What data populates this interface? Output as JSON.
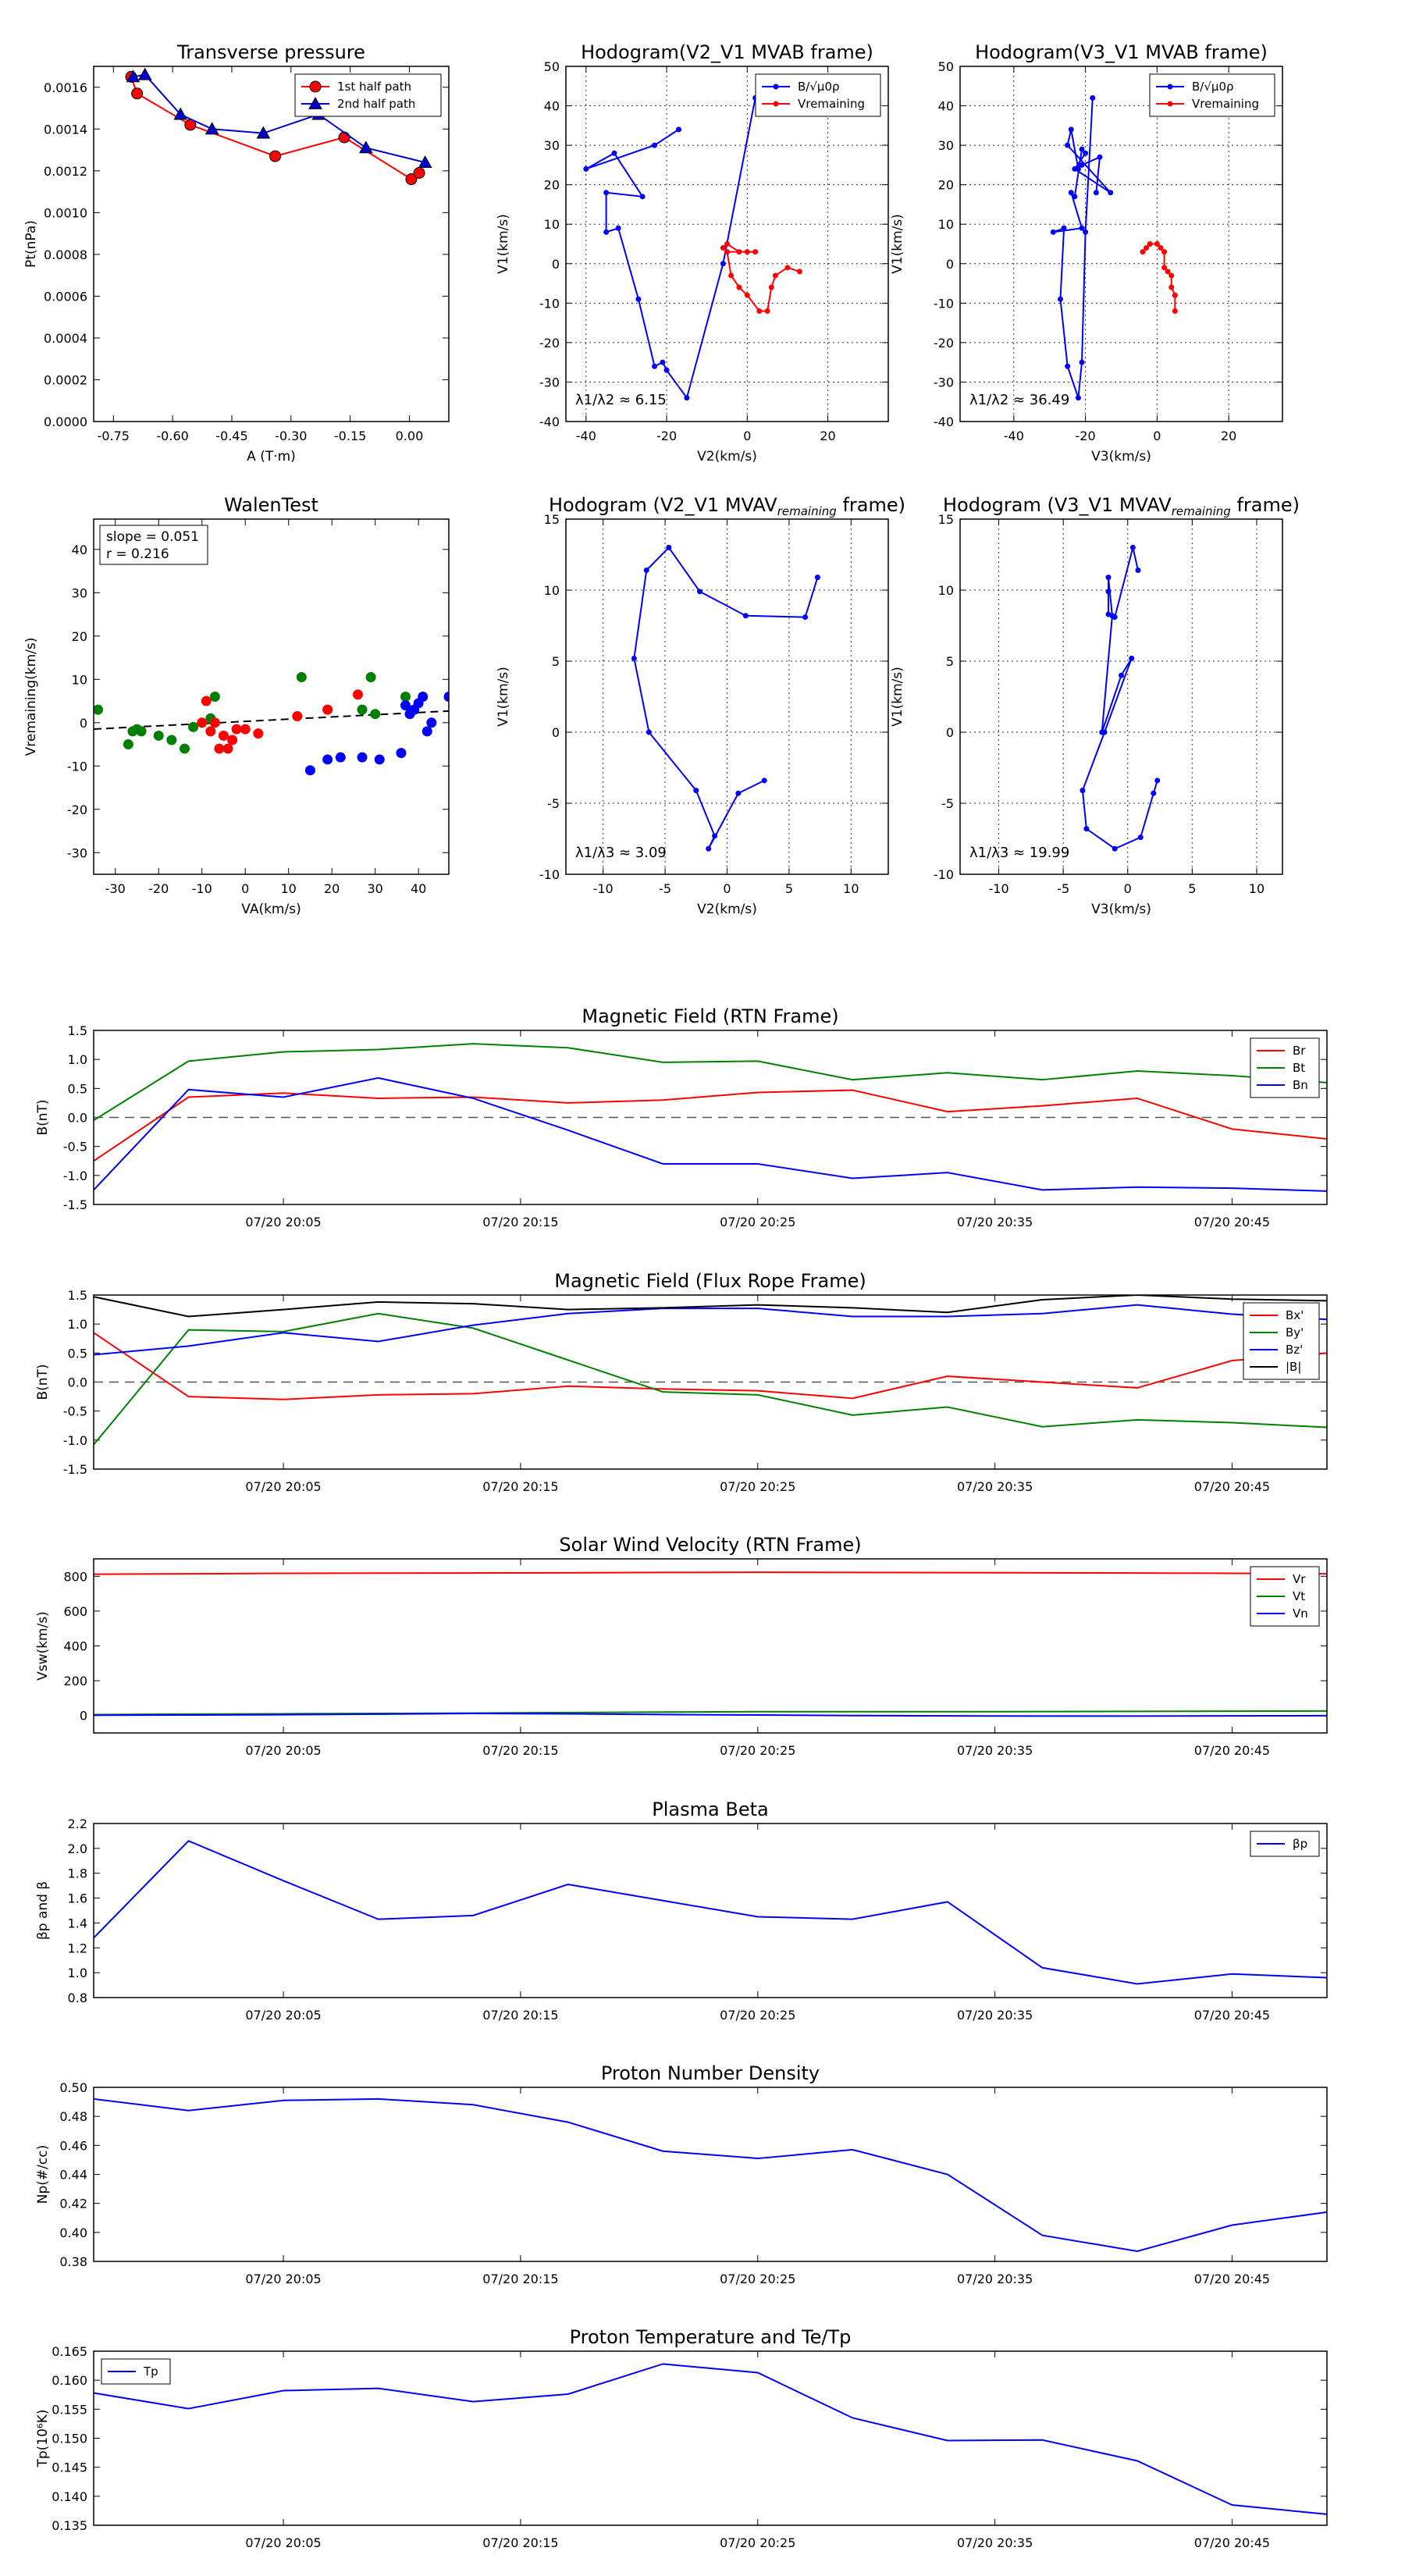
{
  "chart_data": [
    {
      "id": "tp",
      "type": "line",
      "title": "Transverse pressure",
      "xlabel": "A (T·m)",
      "ylabel": "Pt(nPa)",
      "xlim": [
        -0.8,
        0.1
      ],
      "ylim": [
        0,
        0.0017
      ],
      "xticks": [
        -0.75,
        -0.6,
        -0.45,
        -0.3,
        -0.15,
        0.0
      ],
      "xtick_labels": [
        "-0.75",
        "-0.60",
        "-0.45",
        "-0.30",
        "-0.15",
        "0.00"
      ],
      "yticks": [
        0,
        0.0002,
        0.0004,
        0.0006,
        0.0008,
        0.001,
        0.0012,
        0.0014,
        0.0016
      ],
      "ytick_labels": [
        "0.0000",
        "0.0002",
        "0.0004",
        "0.0006",
        "0.0008",
        "0.0010",
        "0.0012",
        "0.0014",
        "0.0016"
      ],
      "grid": false,
      "legend": "top-right",
      "series": [
        {
          "name": "1st half path",
          "color": "#ff0000",
          "marker": "circle",
          "x": [
            -0.705,
            -0.69,
            -0.555,
            -0.34,
            -0.165,
            0.005,
            0.025
          ],
          "y": [
            0.00165,
            0.00157,
            0.00142,
            0.00127,
            0.00136,
            0.00116,
            0.00119
          ]
        },
        {
          "name": "2nd half path",
          "color": "#0000cc",
          "marker": "triangle",
          "x": [
            -0.7,
            -0.67,
            -0.58,
            -0.5,
            -0.37,
            -0.23,
            -0.11,
            0.04
          ],
          "y": [
            0.00165,
            0.00166,
            0.00147,
            0.0014,
            0.00138,
            0.00147,
            0.00131,
            0.00124
          ]
        }
      ]
    },
    {
      "id": "h1",
      "type": "line",
      "title": "Hodogram(V2_V1 MVAB frame)",
      "xlabel": "V2(km/s)",
      "ylabel": "V1(km/s)",
      "xlim": [
        -45,
        35
      ],
      "ylim": [
        -40,
        50
      ],
      "xticks": [
        -40,
        -20,
        0,
        20
      ],
      "yticks": [
        -40,
        -30,
        -20,
        -10,
        0,
        10,
        20,
        30,
        40,
        50
      ],
      "grid": true,
      "legend": "top-right",
      "annotation": "λ1/λ2 ≈ 6.15",
      "series": [
        {
          "name": "B/√μ0ρ",
          "color": "#0000ff",
          "marker": "dot",
          "x": [
            2,
            -6,
            -15,
            -20,
            -21,
            -23,
            -27,
            -32,
            -35,
            -35,
            -26,
            -33,
            -40,
            -23,
            -17
          ],
          "y": [
            42,
            0,
            -34,
            -27,
            -25,
            -26,
            -9,
            9,
            8,
            18,
            17,
            28,
            24,
            30,
            34
          ]
        },
        {
          "name": "Vremaining",
          "color": "#ff0000",
          "marker": "dot",
          "x": [
            -6,
            -5,
            -2,
            0,
            2,
            -5,
            -4,
            -2,
            0,
            3,
            5,
            6,
            7,
            10,
            13
          ],
          "y": [
            4,
            5,
            3,
            3,
            3,
            3,
            -3,
            -6,
            -8,
            -12,
            -12,
            -6,
            -3,
            -1,
            -2
          ]
        }
      ]
    },
    {
      "id": "h2",
      "type": "line",
      "title": "Hodogram(V3_V1 MVAB frame)",
      "xlabel": "V3(km/s)",
      "ylabel": "V1(km/s)",
      "xlim": [
        -55,
        35
      ],
      "ylim": [
        -40,
        50
      ],
      "xticks": [
        -40,
        -20,
        0,
        20
      ],
      "yticks": [
        -40,
        -30,
        -20,
        -10,
        0,
        10,
        20,
        30,
        40,
        50
      ],
      "grid": true,
      "legend": "top-right",
      "annotation": "λ1/λ2 ≈ 36.49",
      "series": [
        {
          "name": "B/√μ0ρ",
          "color": "#0000ff",
          "marker": "dot",
          "x": [
            -18,
            -20,
            -21,
            -22,
            -25,
            -27,
            -26,
            -29,
            -21,
            -24,
            -23,
            -21,
            -20,
            -23,
            -13,
            -25,
            -24,
            -22,
            -21,
            -16,
            -17
          ],
          "y": [
            42,
            8,
            -25,
            -34,
            -26,
            -9,
            9,
            8,
            9,
            18,
            17,
            29,
            28,
            24,
            18,
            30,
            34,
            24,
            25,
            27,
            18
          ]
        },
        {
          "name": "Vremaining",
          "color": "#ff0000",
          "marker": "dot",
          "x": [
            -4,
            -3,
            -2,
            0,
            1,
            2,
            2,
            3,
            4,
            4,
            5,
            5
          ],
          "y": [
            3,
            4,
            5,
            5,
            4,
            3,
            -1,
            -2,
            -3,
            -6,
            -8,
            -12
          ]
        }
      ]
    },
    {
      "id": "walen",
      "type": "scatter",
      "title": "WalenTest",
      "xlabel": "VA(km/s)",
      "ylabel": "Vremaining(km/s)",
      "xlim": [
        -35,
        47
      ],
      "ylim": [
        -35,
        47
      ],
      "xticks": [
        -30,
        -20,
        -10,
        0,
        10,
        20,
        30,
        40
      ],
      "yticks": [
        -30,
        -20,
        -10,
        0,
        10,
        20,
        30,
        40
      ],
      "grid": false,
      "legend_text": [
        "slope = 0.051",
        "r = 0.216"
      ],
      "fit_line": {
        "slope": 0.051,
        "intercept": 0.3
      },
      "series": [
        {
          "name": "green",
          "color": "#008000",
          "x": [
            -34,
            -25,
            -27,
            -24,
            -26,
            -20,
            -17,
            -14,
            -7,
            -8,
            -12,
            13,
            29,
            27,
            30,
            37,
            39
          ],
          "y": [
            3,
            -1.5,
            -5,
            -2,
            -2,
            -3,
            -4,
            -6,
            6,
            1,
            -1,
            10.5,
            10.5,
            3,
            2,
            6,
            3
          ]
        },
        {
          "name": "red",
          "color": "#ff0000",
          "x": [
            -9,
            -8,
            -7,
            -6,
            -5,
            -3,
            -4,
            -2,
            0,
            3,
            12,
            19,
            26,
            -10
          ],
          "y": [
            5,
            -2,
            0,
            -6,
            -3,
            -4,
            -6,
            -1.5,
            -1.5,
            -2.5,
            1.5,
            3,
            6.5,
            0
          ]
        },
        {
          "name": "blue",
          "color": "#0000ff",
          "x": [
            15,
            19,
            22,
            27,
            31,
            36,
            37,
            38,
            39,
            40,
            42,
            43,
            41,
            47
          ],
          "y": [
            -11,
            -8.5,
            -8,
            -8,
            -8.5,
            -7,
            4,
            2,
            3,
            4.5,
            -2,
            0,
            6,
            6
          ]
        }
      ]
    },
    {
      "id": "h3",
      "type": "line",
      "title": "Hodogram (V2_V1 MVAV",
      "title_sub": "remaining",
      "title_tail": " frame)",
      "xlabel": "V2(km/s)",
      "ylabel": "V1(km/s)",
      "xlim": [
        -13,
        13
      ],
      "ylim": [
        -10,
        15
      ],
      "xticks": [
        -10,
        -5,
        0,
        5,
        10
      ],
      "yticks": [
        -10,
        -5,
        0,
        5,
        10,
        15
      ],
      "grid": true,
      "annotation": "λ1/λ3 ≈ 3.09",
      "series": [
        {
          "name": "Vrem",
          "color": "#0000ff",
          "marker": "dot",
          "x": [
            7.3,
            6.3,
            1.5,
            -2.2,
            -4.7,
            -6.5,
            -7.5,
            -6.3,
            -2.5,
            -1,
            -1.5,
            0.9,
            3
          ],
          "y": [
            10.9,
            8.1,
            8.2,
            9.9,
            13,
            11.4,
            5.2,
            0,
            -4.1,
            -7.3,
            -8.2,
            -4.3,
            -3.4
          ]
        }
      ]
    },
    {
      "id": "h4",
      "type": "line",
      "title": "Hodogram (V3_V1 MVAV",
      "title_sub": "remaining",
      "title_tail": " frame)",
      "xlabel": "V3(km/s)",
      "ylabel": "V1(km/s)",
      "xlim": [
        -13,
        12
      ],
      "ylim": [
        -10,
        15
      ],
      "xticks": [
        -10,
        -5,
        0,
        5,
        10
      ],
      "yticks": [
        -10,
        -5,
        0,
        5,
        10,
        15
      ],
      "grid": true,
      "annotation": "λ1/λ3 ≈ 19.99",
      "series": [
        {
          "name": "Vrem",
          "color": "#0000ff",
          "marker": "dot",
          "x": [
            0.8,
            0.4,
            -1,
            -1.5,
            -1.5,
            -1.5,
            -1.2,
            -2,
            -0.5,
            0.3,
            -1.8,
            -3.5,
            -3.2,
            -1,
            1,
            2,
            2.3
          ],
          "y": [
            11.4,
            13,
            8.1,
            8.3,
            9.9,
            10.9,
            8.2,
            0,
            4,
            5.2,
            0,
            -4.1,
            -6.8,
            -8.2,
            -7.4,
            -4.3,
            -3.4
          ]
        }
      ]
    },
    {
      "id": "ts1",
      "type": "line",
      "title": "Magnetic Field (RTN Frame)",
      "ylabel": "B(nT)",
      "ylim": [
        -1.5,
        1.5
      ],
      "yticks": [
        -1.5,
        -1.0,
        -0.5,
        0.0,
        0.5,
        1.0,
        1.5
      ],
      "ytick_labels": [
        "-1.5",
        "-1.0",
        "-0.5",
        "0.0",
        "0.5",
        "1.0",
        "1.5"
      ],
      "zero_line": true,
      "legend": "top-right",
      "series": [
        {
          "name": "Br",
          "color": "#ff0000",
          "values": [
            -0.75,
            0.35,
            0.42,
            0.33,
            0.35,
            0.25,
            0.3,
            0.43,
            0.47,
            0.1,
            0.2,
            0.33,
            -0.2,
            -0.37
          ]
        },
        {
          "name": "Bt",
          "color": "#008000",
          "values": [
            -0.05,
            0.97,
            1.13,
            1.17,
            1.27,
            1.2,
            0.95,
            0.97,
            0.65,
            0.77,
            0.65,
            0.8,
            0.72,
            0.6
          ]
        },
        {
          "name": "Bn",
          "color": "#0000ff",
          "values": [
            -1.25,
            0.48,
            0.35,
            0.68,
            0.33,
            -0.22,
            -0.8,
            -0.8,
            -1.05,
            -0.95,
            -1.25,
            -1.2,
            -1.22,
            -1.27
          ]
        }
      ]
    },
    {
      "id": "ts2",
      "type": "line",
      "title": "Magnetic Field (Flux Rope Frame)",
      "ylabel": "B(nT)",
      "ylim": [
        -1.5,
        1.5
      ],
      "yticks": [
        -1.5,
        -1.0,
        -0.5,
        0.0,
        0.5,
        1.0,
        1.5
      ],
      "ytick_labels": [
        "-1.5",
        "-1.0",
        "-0.5",
        "0.0",
        "0.5",
        "1.0",
        "1.5"
      ],
      "zero_line": true,
      "legend": "top-right",
      "series": [
        {
          "name": "Bx'",
          "color": "#ff0000",
          "values": [
            0.85,
            -0.25,
            -0.3,
            -0.22,
            -0.2,
            -0.07,
            -0.12,
            -0.15,
            -0.28,
            0.1,
            0.0,
            -0.1,
            0.37,
            0.5
          ]
        },
        {
          "name": "By'",
          "color": "#008000",
          "values": [
            -1.08,
            0.9,
            0.87,
            1.18,
            0.93,
            0.38,
            -0.17,
            -0.22,
            -0.57,
            -0.43,
            -0.77,
            -0.65,
            -0.7,
            -0.78
          ]
        },
        {
          "name": "Bz'",
          "color": "#0000ff",
          "values": [
            0.47,
            0.62,
            0.85,
            0.7,
            0.98,
            1.18,
            1.27,
            1.27,
            1.13,
            1.13,
            1.18,
            1.33,
            1.17,
            1.08
          ]
        },
        {
          "name": "|B|",
          "color": "#000000",
          "values": [
            1.47,
            1.13,
            1.25,
            1.38,
            1.35,
            1.25,
            1.28,
            1.33,
            1.28,
            1.2,
            1.42,
            1.5,
            1.43,
            1.4
          ]
        }
      ]
    },
    {
      "id": "ts3",
      "type": "line",
      "title": "Solar Wind Velocity (RTN Frame)",
      "ylabel": "Vsw(km/s)",
      "ylim": [
        -100,
        900
      ],
      "yticks": [
        0,
        200,
        400,
        600,
        800
      ],
      "ytick_labels": [
        "0",
        "200",
        "400",
        "600",
        "800"
      ],
      "legend": "top-right",
      "series": [
        {
          "name": "Vr",
          "color": "#ff0000",
          "values": [
            812,
            814,
            817,
            818,
            819,
            820,
            822,
            823,
            822,
            821,
            820,
            819,
            817,
            814
          ]
        },
        {
          "name": "Vt",
          "color": "#008000",
          "values": [
            5,
            8,
            10,
            12,
            14,
            17,
            20,
            22,
            22,
            22,
            23,
            24,
            25,
            26
          ]
        },
        {
          "name": "Vn",
          "color": "#0000ff",
          "values": [
            2,
            3,
            5,
            8,
            12,
            10,
            6,
            3,
            0,
            -2,
            -3,
            -3,
            -2,
            -1
          ]
        }
      ]
    },
    {
      "id": "ts4",
      "type": "line",
      "title": "Plasma Beta",
      "ylabel": "βp and β",
      "ylim": [
        0.8,
        2.2
      ],
      "yticks": [
        0.8,
        1.0,
        1.2,
        1.4,
        1.6,
        1.8,
        2.0,
        2.2
      ],
      "ytick_labels": [
        "0.8",
        "1.0",
        "1.2",
        "1.4",
        "1.6",
        "1.8",
        "2.0",
        "2.2"
      ],
      "legend": "top-right",
      "series": [
        {
          "name": "βp",
          "color": "#0000ff",
          "values": [
            1.28,
            2.06,
            1.74,
            1.43,
            1.46,
            1.71,
            1.58,
            1.45,
            1.43,
            1.57,
            1.04,
            0.91,
            0.99,
            0.96
          ]
        }
      ]
    },
    {
      "id": "ts5",
      "type": "line",
      "title": "Proton Number Density",
      "ylabel": "Np(#/cc)",
      "ylim": [
        0.38,
        0.5
      ],
      "yticks": [
        0.38,
        0.4,
        0.42,
        0.44,
        0.46,
        0.48,
        0.5
      ],
      "ytick_labels": [
        "0.38",
        "0.40",
        "0.42",
        "0.44",
        "0.46",
        "0.48",
        "0.50"
      ],
      "series": [
        {
          "name": "Np",
          "color": "#0000ff",
          "values": [
            0.492,
            0.484,
            0.491,
            0.492,
            0.488,
            0.476,
            0.456,
            0.451,
            0.457,
            0.44,
            0.398,
            0.387,
            0.405,
            0.414
          ]
        }
      ]
    },
    {
      "id": "ts6",
      "type": "line",
      "title": "Proton Temperature and Te/Tp",
      "ylabel": "Tp(10⁶K)",
      "ylim": [
        0.135,
        0.165
      ],
      "yticks": [
        0.135,
        0.14,
        0.145,
        0.15,
        0.155,
        0.16,
        0.165
      ],
      "ytick_labels": [
        "0.135",
        "0.140",
        "0.145",
        "0.150",
        "0.155",
        "0.160",
        "0.165"
      ],
      "legend": "top-left",
      "series": [
        {
          "name": "Tp",
          "color": "#0000ff",
          "values": [
            0.1578,
            0.1551,
            0.1582,
            0.1586,
            0.1563,
            0.1576,
            0.1628,
            0.1613,
            0.1535,
            0.1496,
            0.1497,
            0.1461,
            0.1385,
            0.1369
          ]
        }
      ]
    }
  ],
  "time_axis": {
    "tick_labels": [
      "07/20 20:05",
      "07/20 20:15",
      "07/20 20:25",
      "07/20 20:35",
      "07/20 20:45"
    ],
    "tick_positions": [
      2,
      4.5,
      7,
      9.5,
      12
    ]
  }
}
